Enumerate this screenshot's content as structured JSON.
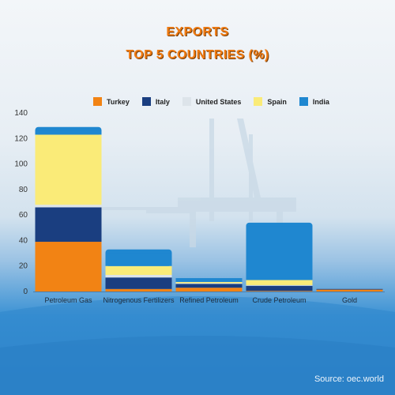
{
  "chart_data": {
    "type": "bar",
    "stacked": true,
    "title": "EXPORTS",
    "subtitle": "TOP 5 COUNTRIES (%)",
    "categories": [
      "Petroleum Gas",
      "Nitrogenous Fertilizers",
      "Refined Petroleum",
      "Crude Petroleum",
      "Gold"
    ],
    "series": [
      {
        "name": "Turkey",
        "color": "#f28314",
        "values": [
          39,
          2,
          3,
          0.5,
          1.5
        ]
      },
      {
        "name": "Italy",
        "color": "#1a3e80",
        "values": [
          27,
          9,
          3,
          4,
          0.5
        ]
      },
      {
        "name": "United States",
        "color": "#dde4ea",
        "values": [
          2,
          2,
          0.5,
          0.5,
          0
        ]
      },
      {
        "name": "Spain",
        "color": "#faeb78",
        "values": [
          55,
          7,
          1,
          4,
          0
        ]
      },
      {
        "name": "India",
        "color": "#1f87d0",
        "values": [
          6,
          13,
          3,
          45,
          0
        ]
      }
    ],
    "ylim": [
      0,
      140
    ],
    "yticks": [
      0,
      20,
      40,
      60,
      80,
      100,
      120,
      140
    ],
    "grid": false,
    "legend": "top"
  },
  "source": "Source: oec.world"
}
